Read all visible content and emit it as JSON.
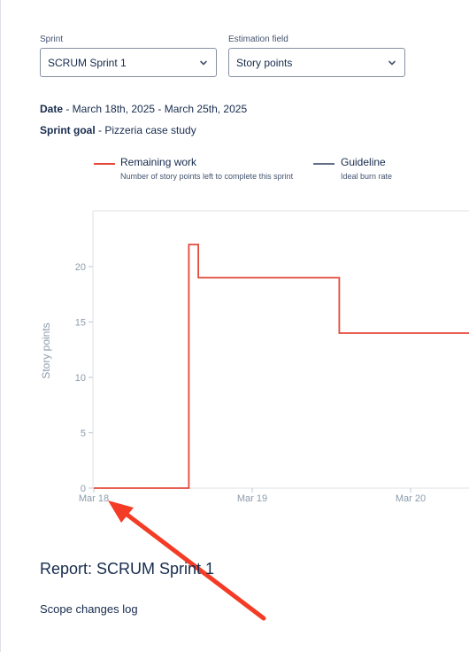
{
  "filters": {
    "sprint": {
      "label": "Sprint",
      "value": "SCRUM Sprint 1"
    },
    "estimation": {
      "label": "Estimation field",
      "value": "Story points"
    }
  },
  "info": {
    "date_label": "Date",
    "date_value": " - March 18th, 2025 - March 25th, 2025",
    "goal_label": "Sprint goal",
    "goal_value": " - Pizzeria case study"
  },
  "legend": [
    {
      "title": "Remaining work",
      "desc": "Number of story points left to complete this sprint",
      "color": "#e5493a"
    },
    {
      "title": "Guideline",
      "desc": "Ideal burn rate",
      "color": "#626f86"
    }
  ],
  "chart_data": {
    "type": "line",
    "ylabel": "Story points",
    "xlabel": "",
    "yticks": [
      0,
      5,
      10,
      15,
      20
    ],
    "xticks": [
      "Mar 18",
      "Mar 19",
      "Mar 20"
    ],
    "ylim": [
      0,
      25
    ],
    "x_unit": "days",
    "series": [
      {
        "step": true,
        "color": "#e5493a",
        "points": [
          {
            "x": 0.0,
            "y": 0
          },
          {
            "x": 0.6,
            "y": 0
          },
          {
            "x": 0.6,
            "y": 22
          },
          {
            "x": 0.66,
            "y": 22
          },
          {
            "x": 0.66,
            "y": 19
          },
          {
            "x": 1.55,
            "y": 19
          },
          {
            "x": 1.55,
            "y": 14
          },
          {
            "x": 2.4,
            "y": 14
          }
        ]
      }
    ]
  },
  "annotation": {
    "arrow_color": "#f43b25"
  },
  "report": {
    "title": "Report: SCRUM Sprint 1",
    "scope_log": "Scope changes log"
  }
}
